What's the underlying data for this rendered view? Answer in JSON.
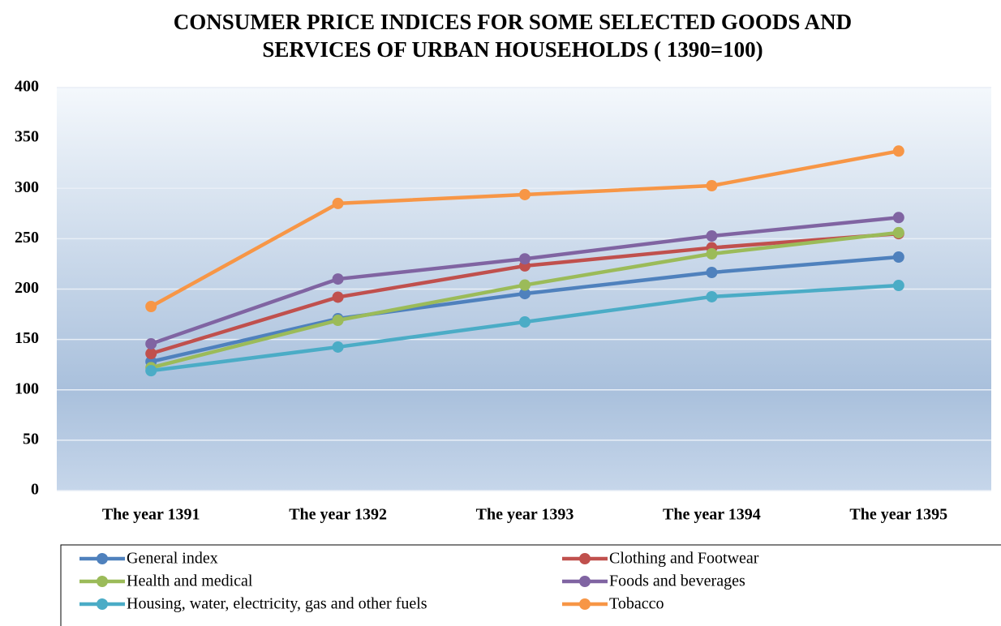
{
  "chart_data": {
    "type": "line",
    "title": [
      "CONSUMER PRICE INDICES FOR  SOME SELECTED GOODS AND",
      "SERVICES OF URBAN HOUSEHOLDS              ( 1390=100)"
    ],
    "categories": [
      "The year 1391",
      "The year 1392",
      "The year 1393",
      "The year 1394",
      "The year 1395"
    ],
    "series": [
      {
        "name": "General index",
        "color": "#4f81bd",
        "values": [
          128,
          170.6,
          195.5,
          216.5,
          231.8
        ]
      },
      {
        "name": "Clothing and Footwear",
        "color": "#c0504d",
        "values": [
          136,
          192,
          223,
          241,
          255
        ]
      },
      {
        "name": "Health and medical",
        "color": "#9bbb59",
        "values": [
          122,
          169,
          204,
          235,
          256
        ]
      },
      {
        "name": "Foods and beverages",
        "color": "#8064a2",
        "values": [
          145.7,
          210,
          230,
          252.7,
          271
        ]
      },
      {
        "name": "Housing, water, electricity, gas and other fuels",
        "color": "#4bacc6",
        "values": [
          119,
          142.5,
          167.4,
          192.4,
          203.6
        ]
      },
      {
        "name": "Tobacco",
        "color": "#f79646",
        "values": [
          182.7,
          285,
          293.8,
          302.6,
          337
        ]
      }
    ],
    "ylim": [
      0,
      400
    ],
    "yticks": [
      0,
      50,
      100,
      150,
      200,
      250,
      300,
      350,
      400
    ],
    "grid": true
  }
}
